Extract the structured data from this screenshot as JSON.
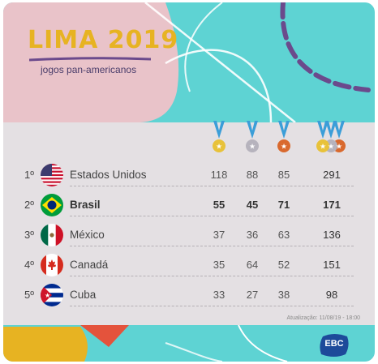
{
  "header": {
    "logo_title": "LIMA 2019",
    "logo_subtitle": "jogos pan-americanos"
  },
  "table": {
    "columns": [
      {
        "name": "gold",
        "medal_color": "#e8c23a"
      },
      {
        "name": "silver",
        "medal_color": "#b6b3bd"
      },
      {
        "name": "bronze",
        "medal_color": "#d9692e"
      },
      {
        "name": "total",
        "medal_color": "multi"
      }
    ],
    "ribbon_color": "#3b9ed8",
    "rows": [
      {
        "rank": "1º",
        "country": "Estados Unidos",
        "flag": "usa-flag-icon",
        "gold": "118",
        "silver": "88",
        "bronze": "85",
        "total": "291",
        "highlight": false
      },
      {
        "rank": "2º",
        "country": "Brasil",
        "flag": "brazil-flag-icon",
        "gold": "55",
        "silver": "45",
        "bronze": "71",
        "total": "171",
        "highlight": true
      },
      {
        "rank": "3º",
        "country": "México",
        "flag": "mexico-flag-icon",
        "gold": "37",
        "silver": "36",
        "bronze": "63",
        "total": "136",
        "highlight": false
      },
      {
        "rank": "4º",
        "country": "Canadá",
        "flag": "canada-flag-icon",
        "gold": "35",
        "silver": "64",
        "bronze": "52",
        "total": "151",
        "highlight": false
      },
      {
        "rank": "5º",
        "country": "Cuba",
        "flag": "cuba-flag-icon",
        "gold": "33",
        "silver": "27",
        "bronze": "38",
        "total": "98",
        "highlight": false
      }
    ],
    "update_text": "Atualização: 11/08/19 - 18:00"
  },
  "footer": {
    "brand": "EBC"
  },
  "colors": {
    "background": "#5ed3d3",
    "panel": "#e4e0e3",
    "logo_gold": "#e7b322",
    "logo_purple": "#4a3d6b",
    "accent_purple": "#6b4a8c",
    "pink": "#e9c3c9",
    "ebc_blue": "#1d4a9a"
  }
}
